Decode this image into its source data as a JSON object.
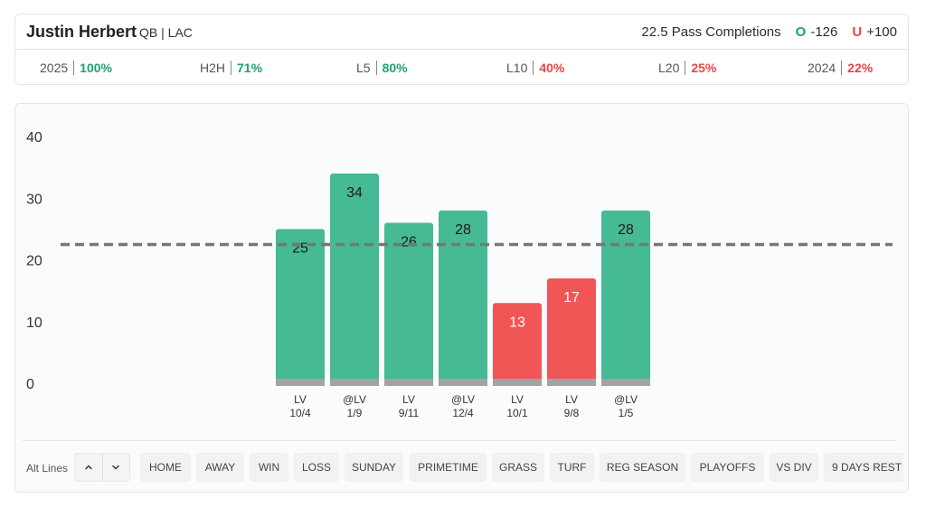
{
  "header": {
    "player_name": "Justin Herbert",
    "player_meta": "QB | LAC",
    "prop_label": "22.5 Pass Completions",
    "over_letter": "O",
    "over_odds": "-126",
    "under_letter": "U",
    "under_odds": "+100"
  },
  "stats": [
    {
      "label": "2025",
      "value": "100%",
      "color": "#1fa36b"
    },
    {
      "label": "H2H",
      "value": "71%",
      "color": "#1fa36b"
    },
    {
      "label": "L5",
      "value": "80%",
      "color": "#1fa36b"
    },
    {
      "label": "L10",
      "value": "40%",
      "color": "#e84545"
    },
    {
      "label": "L20",
      "value": "25%",
      "color": "#e84545"
    },
    {
      "label": "2024",
      "value": "22%",
      "color": "#e84545"
    }
  ],
  "colors": {
    "over": "#46b995",
    "under": "#f05656",
    "base": "#a3a3a3",
    "line": "#777777"
  },
  "chart_data": {
    "type": "bar",
    "categories": [
      {
        "opponent": "LV",
        "date": "10/4"
      },
      {
        "opponent": "@LV",
        "date": "1/9"
      },
      {
        "opponent": "LV",
        "date": "9/11"
      },
      {
        "opponent": "@LV",
        "date": "12/4"
      },
      {
        "opponent": "LV",
        "date": "10/1"
      },
      {
        "opponent": "LV",
        "date": "9/8"
      },
      {
        "opponent": "@LV",
        "date": "1/5"
      }
    ],
    "values": [
      25,
      34,
      26,
      28,
      13,
      17,
      28
    ],
    "line": 22.5,
    "ylim": [
      0,
      40
    ],
    "yticks": [
      0,
      10,
      20,
      30,
      40
    ],
    "grid": false,
    "title": "",
    "xlabel": "",
    "ylabel": ""
  },
  "filters": {
    "alt_lines_label": "Alt Lines",
    "up_icon": "chevron-up-icon",
    "down_icon": "chevron-down-icon",
    "items": [
      "HOME",
      "AWAY",
      "WIN",
      "LOSS",
      "SUNDAY",
      "PRIMETIME",
      "GRASS",
      "TURF",
      "REG SEASON",
      "PLAYOFFS",
      "VS DIV",
      "9 DAYS REST"
    ]
  }
}
